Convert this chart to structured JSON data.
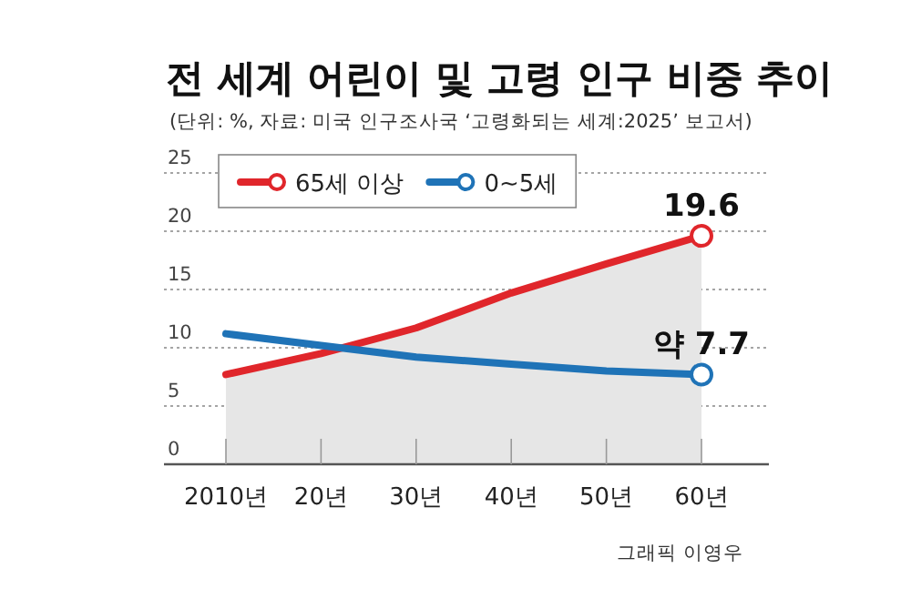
{
  "chart_data": {
    "type": "line",
    "title": "전 세계 어린이 및 고령 인구 비중 추이",
    "subtitle": "(단위: %, 자료: 미국 인구조사국 ‘고령화되는 세계:2025’ 보고서)",
    "categories": [
      "2010년",
      "20년",
      "30년",
      "40년",
      "50년",
      "60년"
    ],
    "series": [
      {
        "name": "65세 이상",
        "type": "area",
        "color": "#e0262b",
        "values": [
          7.7,
          9.5,
          11.7,
          14.7,
          17.2,
          19.6
        ],
        "value_labels": [
          null,
          null,
          null,
          null,
          null,
          "19.6"
        ]
      },
      {
        "name": "0~5세",
        "type": "line",
        "color": "#1f73b7",
        "values": [
          11.2,
          10.2,
          9.2,
          8.6,
          8.0,
          7.7
        ],
        "value_labels": [
          null,
          null,
          null,
          null,
          null,
          "약 7.7"
        ]
      }
    ],
    "ylim": [
      0,
      25
    ],
    "yticks": [
      0,
      5,
      10,
      15,
      20,
      25
    ],
    "grid": "y",
    "legend": "top left",
    "line_style": "solid",
    "annotations": [
      "그래픽 이영우"
    ]
  }
}
